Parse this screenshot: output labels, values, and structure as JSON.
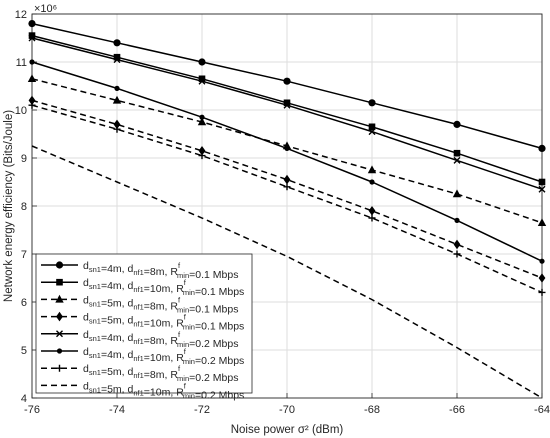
{
  "chart_data": {
    "type": "line",
    "title": "",
    "xlabel": "Noise power σ² (dBm)",
    "ylabel": "Network energy efficiency (Bits/Joule)",
    "y_multiplier_label": "×10⁶",
    "x": [
      -76,
      -74,
      -72,
      -70,
      -68,
      -66,
      -64
    ],
    "xlim": [
      -76,
      -64
    ],
    "ylim": [
      4,
      12
    ],
    "xticks": [
      "-76",
      "-74",
      "-72",
      "-70",
      "-68",
      "-66",
      "-64"
    ],
    "yticks": [
      "4",
      "5",
      "6",
      "7",
      "8",
      "9",
      "10",
      "11",
      "12"
    ],
    "grid": true,
    "legend_position": "lower-left",
    "series": [
      {
        "values": [
          11.8,
          11.4,
          11.0,
          10.6,
          10.15,
          9.7,
          9.2
        ],
        "legend": {
          "d1": "4m",
          "d2": "8m",
          "r": "0.1 Mbps"
        },
        "marker": "circle",
        "dash": "solid"
      },
      {
        "values": [
          11.55,
          11.1,
          10.65,
          10.15,
          9.65,
          9.1,
          8.5
        ],
        "legend": {
          "d1": "4m",
          "d2": "10m",
          "r": "0.1 Mbps"
        },
        "marker": "square",
        "dash": "solid"
      },
      {
        "values": [
          10.65,
          10.2,
          9.75,
          9.25,
          8.75,
          8.25,
          7.65
        ],
        "legend": {
          "d1": "5m",
          "d2": "8m",
          "r": "0.1 Mbps"
        },
        "marker": "triangle",
        "dash": "dashed"
      },
      {
        "values": [
          10.2,
          9.7,
          9.15,
          8.55,
          7.9,
          7.2,
          6.5
        ],
        "legend": {
          "d1": "5m",
          "d2": "10m",
          "r": "0.1 Mbps"
        },
        "marker": "diamond",
        "dash": "dashed"
      },
      {
        "values": [
          11.5,
          11.05,
          10.6,
          10.1,
          9.55,
          8.95,
          8.35
        ],
        "legend": {
          "d1": "4m",
          "d2": "8m",
          "r": "0.2 Mbps"
        },
        "marker": "x",
        "dash": "solid"
      },
      {
        "values": [
          11.0,
          10.45,
          9.85,
          9.2,
          8.5,
          7.7,
          6.85
        ],
        "legend": {
          "d1": "4m",
          "d2": "10m",
          "r": "0.2 Mbps"
        },
        "marker": "dot",
        "dash": "solid"
      },
      {
        "values": [
          10.1,
          9.6,
          9.05,
          8.4,
          7.75,
          7.0,
          6.2
        ],
        "legend": {
          "d1": "5m",
          "d2": "8m",
          "r": "0.2 Mbps"
        },
        "marker": "plus",
        "dash": "dashed"
      },
      {
        "values": [
          9.25,
          8.5,
          7.75,
          6.95,
          6.05,
          5.05,
          4.0
        ],
        "legend": {
          "d1": "5m",
          "d2": "10m",
          "r": "0.2 Mbps"
        },
        "marker": "none",
        "dash": "dashed"
      }
    ],
    "legend_labels": {
      "d1_base": "d",
      "d1_sub": "sn1",
      "d2_base": "d",
      "d2_sub": "nf1",
      "r_base": "R",
      "r_sup": "f",
      "r_sub": "min"
    }
  }
}
